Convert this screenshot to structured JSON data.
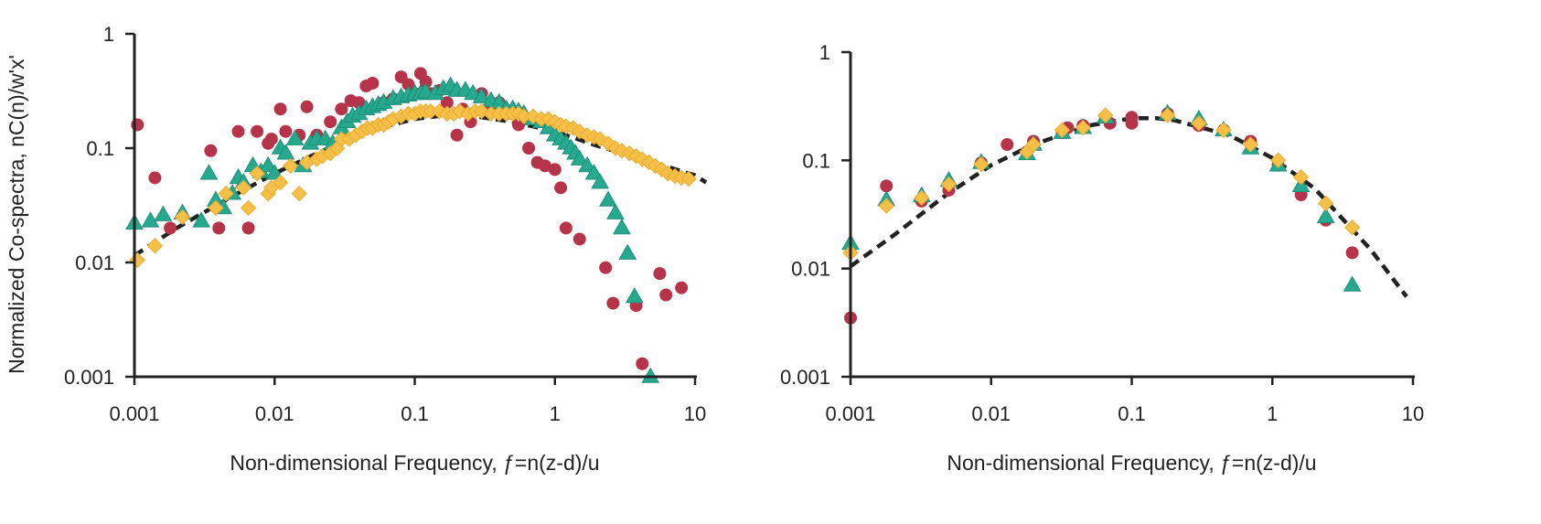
{
  "chart_data": [
    {
      "type": "scatter",
      "title": "",
      "xlabel": "Non-dimensional Frequency, ƒ=n(z-d)/u",
      "ylabel": "Normalized Co-spectra, nC(n)/w'x'",
      "xscale": "log",
      "yscale": "log",
      "xlim": [
        0.001,
        10
      ],
      "ylim": [
        0.001,
        1
      ],
      "x_ticks": [
        0.001,
        0.01,
        0.1,
        1,
        10
      ],
      "x_tick_labels": [
        "0.001",
        "0.01",
        "0.1",
        "1",
        "10"
      ],
      "y_ticks": [
        0.001,
        0.01,
        0.1,
        1
      ],
      "y_tick_labels": [
        "0.001",
        "0.01",
        "0.1",
        "1"
      ],
      "grid": false,
      "legend": "none",
      "reference_curve": {
        "style": "dashed",
        "color": "#222222",
        "x": [
          0.001,
          0.002,
          0.005,
          0.01,
          0.02,
          0.05,
          0.1,
          0.2,
          0.5,
          1,
          2,
          5,
          10,
          12
        ],
        "y": [
          0.0115,
          0.02,
          0.038,
          0.06,
          0.09,
          0.145,
          0.18,
          0.2,
          0.17,
          0.14,
          0.105,
          0.075,
          0.058,
          0.05
        ]
      },
      "series": [
        {
          "marker": "circle",
          "color": "#b5344a",
          "x": [
            0.00105,
            0.0014,
            0.0018,
            0.0035,
            0.004,
            0.0055,
            0.0065,
            0.0075,
            0.009,
            0.0095,
            0.011,
            0.012,
            0.015,
            0.017,
            0.02,
            0.025,
            0.03,
            0.035,
            0.04,
            0.045,
            0.05,
            0.06,
            0.07,
            0.08,
            0.09,
            0.1,
            0.11,
            0.12,
            0.13,
            0.15,
            0.17,
            0.2,
            0.22,
            0.25,
            0.3,
            0.35,
            0.4,
            0.45,
            0.55,
            0.65,
            0.75,
            0.85,
            1.0,
            1.1,
            1.2,
            1.5,
            2.3,
            2.6,
            3.8,
            4.2,
            5.6,
            6.2,
            8.0
          ],
          "y": [
            0.16,
            0.055,
            0.02,
            0.095,
            0.02,
            0.14,
            0.02,
            0.14,
            0.11,
            0.12,
            0.22,
            0.14,
            0.13,
            0.23,
            0.13,
            0.17,
            0.22,
            0.26,
            0.25,
            0.35,
            0.37,
            0.25,
            0.27,
            0.42,
            0.36,
            0.3,
            0.45,
            0.38,
            0.3,
            0.32,
            0.25,
            0.13,
            0.22,
            0.17,
            0.3,
            0.24,
            0.25,
            0.2,
            0.16,
            0.1,
            0.075,
            0.07,
            0.065,
            0.045,
            0.02,
            0.016,
            0.009,
            0.0044,
            0.0042,
            0.0013,
            0.008,
            0.0052,
            0.006
          ]
        },
        {
          "marker": "triangle",
          "color": "#26a98f",
          "x": [
            0.001,
            0.0013,
            0.0016,
            0.0022,
            0.003,
            0.0034,
            0.0038,
            0.0043,
            0.005,
            0.0055,
            0.006,
            0.007,
            0.008,
            0.009,
            0.01,
            0.011,
            0.012,
            0.014,
            0.016,
            0.018,
            0.02,
            0.023,
            0.026,
            0.03,
            0.033,
            0.036,
            0.04,
            0.045,
            0.05,
            0.055,
            0.06,
            0.07,
            0.08,
            0.09,
            0.1,
            0.11,
            0.12,
            0.14,
            0.16,
            0.18,
            0.2,
            0.23,
            0.26,
            0.3,
            0.35,
            0.4,
            0.45,
            0.5,
            0.55,
            0.6,
            0.7,
            0.8,
            0.9,
            1.0,
            1.1,
            1.2,
            1.3,
            1.4,
            1.5,
            1.7,
            1.9,
            2.1,
            2.4,
            2.7,
            3.0,
            3.3,
            3.7,
            4.8
          ],
          "y": [
            0.022,
            0.023,
            0.026,
            0.027,
            0.023,
            0.06,
            0.035,
            0.03,
            0.04,
            0.055,
            0.05,
            0.07,
            0.062,
            0.07,
            0.06,
            0.1,
            0.09,
            0.12,
            0.07,
            0.11,
            0.12,
            0.12,
            0.11,
            0.15,
            0.17,
            0.19,
            0.2,
            0.22,
            0.23,
            0.24,
            0.25,
            0.27,
            0.28,
            0.29,
            0.3,
            0.3,
            0.31,
            0.3,
            0.33,
            0.35,
            0.32,
            0.32,
            0.3,
            0.28,
            0.26,
            0.25,
            0.22,
            0.22,
            0.21,
            0.2,
            0.18,
            0.17,
            0.15,
            0.13,
            0.12,
            0.11,
            0.1,
            0.09,
            0.08,
            0.07,
            0.06,
            0.05,
            0.035,
            0.027,
            0.02,
            0.012,
            0.005,
            0.001
          ]
        },
        {
          "marker": "diamond",
          "color": "#f6bf47",
          "x": [
            0.00105,
            0.0014,
            0.0022,
            0.0038,
            0.0045,
            0.006,
            0.0065,
            0.0075,
            0.009,
            0.0095,
            0.011,
            0.013,
            0.015,
            0.017,
            0.02,
            0.022,
            0.025,
            0.028,
            0.03,
            0.034,
            0.038,
            0.042,
            0.046,
            0.05,
            0.055,
            0.06,
            0.065,
            0.07,
            0.08,
            0.09,
            0.1,
            0.11,
            0.12,
            0.13,
            0.15,
            0.17,
            0.19,
            0.21,
            0.24,
            0.27,
            0.3,
            0.35,
            0.4,
            0.45,
            0.5,
            0.55,
            0.6,
            0.7,
            0.8,
            0.9,
            1.0,
            1.1,
            1.2,
            1.35,
            1.5,
            1.7,
            1.9,
            2.1,
            2.4,
            2.7,
            3.0,
            3.4,
            3.8,
            4.2,
            4.7,
            5.2,
            5.8,
            6.4,
            7.2,
            8.0,
            9.0
          ],
          "y": [
            0.0105,
            0.014,
            0.025,
            0.03,
            0.04,
            0.045,
            0.03,
            0.06,
            0.04,
            0.045,
            0.05,
            0.07,
            0.04,
            0.075,
            0.08,
            0.085,
            0.09,
            0.1,
            0.12,
            0.12,
            0.13,
            0.14,
            0.15,
            0.15,
            0.16,
            0.16,
            0.17,
            0.18,
            0.19,
            0.2,
            0.2,
            0.21,
            0.21,
            0.21,
            0.21,
            0.2,
            0.2,
            0.21,
            0.2,
            0.21,
            0.21,
            0.2,
            0.2,
            0.2,
            0.2,
            0.2,
            0.19,
            0.19,
            0.18,
            0.18,
            0.17,
            0.16,
            0.155,
            0.15,
            0.14,
            0.13,
            0.125,
            0.12,
            0.11,
            0.1,
            0.095,
            0.09,
            0.085,
            0.08,
            0.075,
            0.07,
            0.065,
            0.06,
            0.057,
            0.055,
            0.054
          ]
        }
      ]
    },
    {
      "type": "scatter",
      "title": "",
      "xlabel": "Non-dimensional Frequency, ƒ=n(z-d)/u",
      "ylabel": "",
      "xscale": "log",
      "yscale": "log",
      "xlim": [
        0.001,
        10
      ],
      "ylim": [
        0.001,
        1
      ],
      "x_ticks": [
        0.001,
        0.01,
        0.1,
        1,
        10
      ],
      "x_tick_labels": [
        "0.001",
        "0.01",
        "0.1",
        "1",
        "10"
      ],
      "y_ticks": [
        0.001,
        0.01,
        0.1,
        1
      ],
      "y_tick_labels": [
        "0.001",
        "0.01",
        "0.1",
        "1"
      ],
      "grid": false,
      "legend": "none",
      "reference_curve": {
        "style": "dashed",
        "color": "#222222",
        "x": [
          0.001,
          0.002,
          0.005,
          0.01,
          0.02,
          0.05,
          0.1,
          0.15,
          0.2,
          0.5,
          1,
          2,
          5,
          9
        ],
        "y": [
          0.0105,
          0.02,
          0.05,
          0.09,
          0.14,
          0.21,
          0.245,
          0.245,
          0.235,
          0.17,
          0.105,
          0.055,
          0.015,
          0.0055
        ]
      },
      "series": [
        {
          "marker": "circle",
          "color": "#b5344a",
          "x": [
            0.001,
            0.0018,
            0.0032,
            0.005,
            0.0085,
            0.013,
            0.018,
            0.02,
            0.032,
            0.035,
            0.045,
            0.065,
            0.07,
            0.1,
            0.1,
            0.18,
            0.3,
            0.45,
            0.7,
            1.1,
            1.6,
            2.4,
            3.7
          ],
          "y": [
            0.0035,
            0.058,
            0.042,
            0.053,
            0.095,
            0.14,
            0.12,
            0.15,
            0.18,
            0.2,
            0.21,
            0.25,
            0.22,
            0.25,
            0.22,
            0.27,
            0.21,
            0.19,
            0.15,
            0.09,
            0.048,
            0.028,
            0.014
          ]
        },
        {
          "marker": "triangle",
          "color": "#26a98f",
          "x": [
            0.001,
            0.0018,
            0.0032,
            0.005,
            0.0085,
            0.018,
            0.02,
            0.032,
            0.045,
            0.065,
            0.18,
            0.3,
            0.45,
            0.7,
            1.1,
            1.6,
            2.4,
            3.7
          ],
          "y": [
            0.017,
            0.043,
            0.047,
            0.065,
            0.095,
            0.115,
            0.14,
            0.18,
            0.2,
            0.25,
            0.27,
            0.24,
            0.19,
            0.13,
            0.09,
            0.058,
            0.03,
            0.007
          ]
        },
        {
          "marker": "diamond",
          "color": "#f6bf47",
          "x": [
            0.001,
            0.0018,
            0.0032,
            0.005,
            0.0085,
            0.018,
            0.02,
            0.032,
            0.045,
            0.065,
            0.18,
            0.3,
            0.45,
            0.7,
            1.1,
            1.6,
            2.4,
            3.7
          ],
          "y": [
            0.014,
            0.038,
            0.045,
            0.06,
            0.092,
            0.12,
            0.14,
            0.19,
            0.2,
            0.26,
            0.26,
            0.22,
            0.19,
            0.14,
            0.1,
            0.07,
            0.04,
            0.024
          ]
        }
      ]
    }
  ]
}
